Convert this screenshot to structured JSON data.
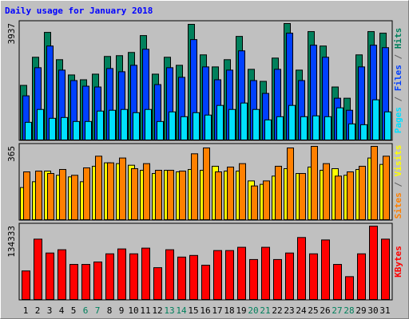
{
  "chart_data": [
    {
      "type": "bar",
      "title": "Daily usage for January 2018",
      "ylim": [
        0,
        3937
      ],
      "yticks": [
        3937
      ],
      "legend_separator": " / ",
      "series": [
        {
          "name": "Pages",
          "color": "#00e0ff",
          "values": [
            597,
            1032,
            733,
            760,
            625,
            625,
            977,
            1005,
            1032,
            923,
            1032,
            625,
            950,
            787,
            923,
            842,
            1168,
            1032,
            1249,
            1032,
            679,
            787,
            1168,
            787,
            815,
            787,
            1086,
            543,
            516,
            1358,
            950
          ]
        },
        {
          "name": "Files",
          "color": "#0040ff",
          "values": [
            1493,
            2444,
            3177,
            2362,
            2009,
            1819,
            1792,
            2416,
            2308,
            2525,
            3068,
            1873,
            2444,
            2118,
            3394,
            2471,
            2036,
            2362,
            3014,
            2009,
            1575,
            2389,
            3611,
            2009,
            3204,
            2797,
            1412,
            1005,
            2471,
            3204,
            3122
          ]
        },
        {
          "name": "Hits",
          "color": "#00805c",
          "values": [
            1846,
            2797,
            3638,
            2715,
            2199,
            2036,
            2226,
            2824,
            2851,
            2959,
            3530,
            2226,
            2797,
            2525,
            3910,
            2878,
            2471,
            2715,
            3502,
            2389,
            1982,
            2769,
            3937,
            2362,
            3665,
            3177,
            1792,
            1412,
            2878,
            3665,
            3611
          ]
        }
      ]
    },
    {
      "type": "bar",
      "ylim": [
        0,
        365
      ],
      "yticks": [
        365
      ],
      "legend_separator": " / ",
      "series": [
        {
          "name": "Sites",
          "color": "#ff8000",
          "values": [
            238,
            242,
            230,
            250,
            221,
            258,
            316,
            283,
            307,
            254,
            279,
            246,
            246,
            242,
            328,
            357,
            238,
            262,
            279,
            168,
            193,
            266,
            357,
            230,
            365,
            279,
            217,
            238,
            266,
            365,
            316
          ]
        },
        {
          "name": "Visits",
          "color": "#ffff00",
          "values": [
            160,
            189,
            242,
            221,
            213,
            189,
            266,
            283,
            279,
            271,
            246,
            230,
            246,
            238,
            250,
            246,
            266,
            242,
            242,
            193,
            176,
            217,
            254,
            230,
            262,
            246,
            254,
            221,
            250,
            307,
            275
          ]
        }
      ]
    },
    {
      "type": "bar",
      "ylim": [
        0,
        134333
      ],
      "yticks": [
        134333
      ],
      "categories": [
        "1",
        "2",
        "3",
        "4",
        "5",
        "6",
        "7",
        "8",
        "9",
        "10",
        "11",
        "12",
        "13",
        "14",
        "15",
        "16",
        "17",
        "18",
        "19",
        "20",
        "21",
        "22",
        "23",
        "24",
        "25",
        "26",
        "27",
        "28",
        "29",
        "30",
        "31"
      ],
      "category_colors": [
        "#000000",
        "#000000",
        "#000000",
        "#000000",
        "#000000",
        "#00805c",
        "#00805c",
        "#000000",
        "#000000",
        "#000000",
        "#000000",
        "#000000",
        "#00805c",
        "#00805c",
        "#000000",
        "#000000",
        "#000000",
        "#000000",
        "#000000",
        "#00805c",
        "#00805c",
        "#000000",
        "#000000",
        "#000000",
        "#000000",
        "#000000",
        "#00805c",
        "#00805c",
        "#000000",
        "#000000",
        "#000000"
      ],
      "series": [
        {
          "name": "KBytes",
          "color": "#ff0000",
          "values": [
            52240,
            110450,
            85080,
            91050,
            64180,
            64180,
            68660,
            83590,
            92540,
            83590,
            94030,
            58210,
            91050,
            77620,
            80600,
            62690,
            89560,
            89560,
            95530,
            73140,
            95530,
            73140,
            85080,
            113440,
            83590,
            108960,
            64180,
            41790,
            83590,
            134333,
            110450
          ]
        }
      ]
    }
  ]
}
